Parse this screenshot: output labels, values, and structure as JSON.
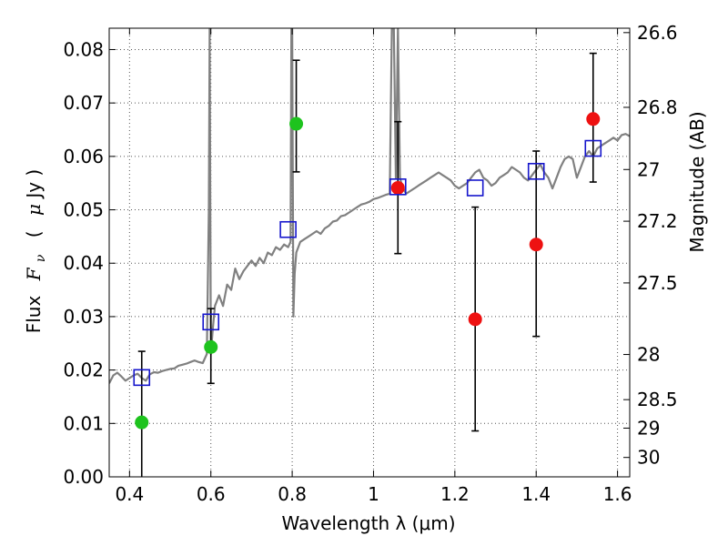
{
  "chart_data": {
    "type": "scatter",
    "xlabel": "Wavelength  λ (μm)",
    "ylabel": {
      "prefix": "Flux",
      "symbol": "F",
      "subscript": "ν",
      "unit_open": "(",
      "unit_mu": "μ",
      "unit_rest": "Jy )"
    },
    "y2label": "Magnitude (AB)",
    "xlim": [
      0.35,
      1.63
    ],
    "ylim": [
      0.0,
      0.084
    ],
    "grid": true,
    "x_ticks": [
      {
        "value": 0.4,
        "label": "0.4"
      },
      {
        "value": 0.6,
        "label": "0.6"
      },
      {
        "value": 0.8,
        "label": "0.8"
      },
      {
        "value": 1.0,
        "label": "1"
      },
      {
        "value": 1.2,
        "label": "1.2"
      },
      {
        "value": 1.4,
        "label": "1.4"
      },
      {
        "value": 1.6,
        "label": "1.6"
      }
    ],
    "y_ticks": [
      {
        "value": 0.0,
        "label": "0.00"
      },
      {
        "value": 0.01,
        "label": "0.01"
      },
      {
        "value": 0.02,
        "label": "0.02"
      },
      {
        "value": 0.03,
        "label": "0.03"
      },
      {
        "value": 0.04,
        "label": "0.04"
      },
      {
        "value": 0.05,
        "label": "0.05"
      },
      {
        "value": 0.06,
        "label": "0.06"
      },
      {
        "value": 0.07,
        "label": "0.07"
      },
      {
        "value": 0.08,
        "label": "0.08"
      }
    ],
    "y2_ticks": [
      {
        "mag": 26.6,
        "label": "26.6"
      },
      {
        "mag": 26.8,
        "label": "26.8"
      },
      {
        "mag": 27.0,
        "label": "27"
      },
      {
        "mag": 27.2,
        "label": "27.2"
      },
      {
        "mag": 27.5,
        "label": "27.5"
      },
      {
        "mag": 28.0,
        "label": "28"
      },
      {
        "mag": 28.5,
        "label": "28.5"
      },
      {
        "mag": 29.0,
        "label": "29"
      },
      {
        "mag": 30.0,
        "label": "30"
      }
    ],
    "colors": {
      "model": "#808080",
      "green": "#1ec31e",
      "red": "#ee1111",
      "box": "#1515cc",
      "errorbar": "#000000",
      "grid": "#555555"
    },
    "series": [
      {
        "name": "model_spectrum",
        "kind": "line",
        "x": [
          0.35,
          0.36,
          0.37,
          0.38,
          0.39,
          0.4,
          0.41,
          0.42,
          0.43,
          0.44,
          0.45,
          0.46,
          0.47,
          0.48,
          0.49,
          0.5,
          0.51,
          0.52,
          0.53,
          0.54,
          0.55,
          0.56,
          0.57,
          0.58,
          0.59,
          0.595,
          0.597,
          0.6,
          0.605,
          0.61,
          0.62,
          0.63,
          0.64,
          0.65,
          0.66,
          0.67,
          0.68,
          0.69,
          0.7,
          0.71,
          0.72,
          0.73,
          0.74,
          0.75,
          0.76,
          0.77,
          0.78,
          0.79,
          0.796,
          0.798,
          0.8,
          0.803,
          0.806,
          0.81,
          0.82,
          0.83,
          0.84,
          0.85,
          0.86,
          0.87,
          0.88,
          0.89,
          0.9,
          0.91,
          0.92,
          0.93,
          0.94,
          0.95,
          0.96,
          0.97,
          0.98,
          0.99,
          1.0,
          1.01,
          1.02,
          1.03,
          1.04,
          1.045,
          1.048,
          1.05,
          1.055,
          1.06,
          1.065,
          1.07,
          1.08,
          1.09,
          1.1,
          1.11,
          1.12,
          1.13,
          1.14,
          1.15,
          1.16,
          1.17,
          1.18,
          1.19,
          1.2,
          1.21,
          1.22,
          1.23,
          1.24,
          1.25,
          1.26,
          1.27,
          1.28,
          1.29,
          1.3,
          1.31,
          1.32,
          1.33,
          1.34,
          1.35,
          1.36,
          1.37,
          1.38,
          1.39,
          1.4,
          1.41,
          1.42,
          1.43,
          1.44,
          1.45,
          1.46,
          1.47,
          1.48,
          1.49,
          1.5,
          1.51,
          1.52,
          1.53,
          1.54,
          1.55,
          1.56,
          1.57,
          1.58,
          1.59,
          1.6,
          1.61,
          1.62,
          1.63
        ],
        "y": [
          0.0175,
          0.019,
          0.0195,
          0.0188,
          0.018,
          0.0185,
          0.019,
          0.0193,
          0.0185,
          0.018,
          0.0192,
          0.0196,
          0.0195,
          0.0198,
          0.02,
          0.0202,
          0.0203,
          0.0208,
          0.021,
          0.0212,
          0.0215,
          0.0218,
          0.0215,
          0.0213,
          0.023,
          0.05,
          0.084,
          0.023,
          0.028,
          0.032,
          0.034,
          0.032,
          0.036,
          0.035,
          0.039,
          0.037,
          0.0385,
          0.0395,
          0.0405,
          0.0395,
          0.041,
          0.04,
          0.042,
          0.0415,
          0.043,
          0.0425,
          0.0435,
          0.043,
          0.044,
          0.084,
          0.084,
          0.03,
          0.038,
          0.042,
          0.044,
          0.0445,
          0.045,
          0.0455,
          0.046,
          0.0455,
          0.0465,
          0.047,
          0.0478,
          0.048,
          0.0488,
          0.049,
          0.0495,
          0.05,
          0.0505,
          0.051,
          0.0512,
          0.0515,
          0.052,
          0.0522,
          0.0525,
          0.0528,
          0.053,
          0.084,
          0.084,
          0.084,
          0.056,
          0.084,
          0.056,
          0.0545,
          0.053,
          0.0535,
          0.054,
          0.0545,
          0.055,
          0.0555,
          0.056,
          0.0565,
          0.057,
          0.0565,
          0.056,
          0.0555,
          0.0545,
          0.054,
          0.0545,
          0.055,
          0.056,
          0.057,
          0.0575,
          0.056,
          0.0555,
          0.0545,
          0.055,
          0.056,
          0.0565,
          0.057,
          0.058,
          0.0575,
          0.057,
          0.056,
          0.0555,
          0.0565,
          0.0575,
          0.0585,
          0.057,
          0.056,
          0.054,
          0.056,
          0.058,
          0.0595,
          0.06,
          0.0595,
          0.056,
          0.058,
          0.06,
          0.061,
          0.06,
          0.0615,
          0.062,
          0.0625,
          0.063,
          0.0635,
          0.063,
          0.064,
          0.0642,
          0.0638
        ]
      },
      {
        "name": "green_points",
        "kind": "errorbar",
        "color_key": "green",
        "x": [
          0.43,
          0.6,
          0.81
        ],
        "y": [
          0.0102,
          0.0243,
          0.0661
        ],
        "yerr_low": [
          0.0132,
          0.0068,
          0.009
        ],
        "yerr_high": [
          0.0133,
          0.0072,
          0.0119
        ]
      },
      {
        "name": "red_points",
        "kind": "errorbar",
        "color_key": "red",
        "x": [
          1.06,
          1.25,
          1.4,
          1.54
        ],
        "y": [
          0.0541,
          0.0295,
          0.0435,
          0.067
        ],
        "yerr_low": [
          0.0123,
          0.0209,
          0.0172,
          0.0118
        ],
        "yerr_high": [
          0.0124,
          0.021,
          0.0175,
          0.0123
        ]
      },
      {
        "name": "model_boxes",
        "kind": "square",
        "color_key": "box",
        "x": [
          0.43,
          0.6,
          0.79,
          1.06,
          1.25,
          1.4,
          1.54
        ],
        "y": [
          0.0186,
          0.029,
          0.0463,
          0.0543,
          0.0541,
          0.0572,
          0.0615
        ]
      }
    ]
  }
}
